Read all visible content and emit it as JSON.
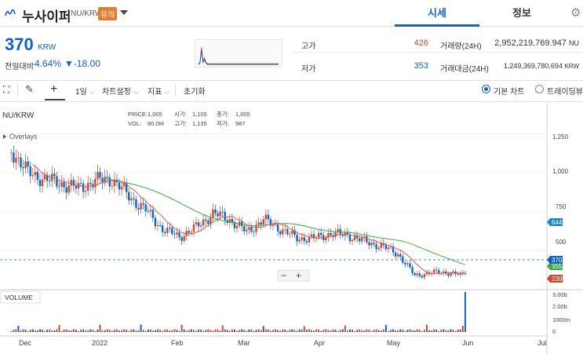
{
  "header": {
    "coin_name": "누사이퍼",
    "pair": "NU/KRW",
    "warning_badge": "유의",
    "tabs": [
      {
        "label": "시세",
        "active": true
      },
      {
        "label": "정보",
        "active": false
      }
    ]
  },
  "price": {
    "current": "370",
    "unit": "KRW",
    "change_label": "전일대비",
    "change_rate": "-4.64%",
    "change_amount": "▼-18.00"
  },
  "stats": {
    "high_label": "고가",
    "high_value": "426",
    "low_label": "저가",
    "low_value": "353",
    "volume_label": "거래량(24H)",
    "volume_value": "2,952,219,769.947",
    "volume_unit": "NU",
    "amount_label": "거래대금(24H)",
    "amount_value": "1,249,369,780,694",
    "amount_unit": "KRW"
  },
  "toolbar": {
    "interval": "1일",
    "chart_settings": "차트설정",
    "indicators": "지표",
    "reset": "초기화",
    "basic_chart": "기본 차트",
    "tradingview": "트레이딩뷰"
  },
  "chart": {
    "symbol": "NU/KRW",
    "overlays": "Overlays",
    "info": {
      "price_label": "PRICE:",
      "price_value": "1,005",
      "open_label": "시가:",
      "open_value": "1,105",
      "close_label": "종가:",
      "close_value": "1,005",
      "vol_label": "VOL:",
      "vol_value": "80.0M",
      "high_label": "고가:",
      "high_value": "1,135",
      "low_label": "저가:",
      "low_value": "987"
    },
    "volume_label": "VOLUME",
    "zoom_out": "−",
    "zoom_in": "+",
    "price_ticks": [
      "1,250",
      "1,000",
      "750",
      "500"
    ],
    "volume_ticks": [
      "3.00b",
      "2.00b",
      "1000m",
      "0"
    ],
    "x_ticks": [
      "Dec",
      "2022",
      "Feb",
      "Mar",
      "Apr",
      "May",
      "Jun",
      "Jul"
    ],
    "badges": [
      {
        "value": "644",
        "color": "#1e88c8"
      },
      {
        "value": "370",
        "color": "#1261c4"
      },
      {
        "value": "355",
        "color": "#3aa64a"
      },
      {
        "value": "239",
        "color": "#c84a31"
      }
    ]
  },
  "colors": {
    "up": "#c84a31",
    "down": "#1261c4",
    "accent": "#1261c4",
    "ma_short": "#e05a4a",
    "ma_long": "#3cae3c"
  },
  "chart_data": {
    "type": "line",
    "x": [
      "2021-11-24",
      "2021-12-01",
      "2021-12-08",
      "2021-12-15",
      "2021-12-22",
      "2021-12-29",
      "2022-01-05",
      "2022-01-12",
      "2022-01-19",
      "2022-01-26",
      "2022-02-02",
      "2022-02-09",
      "2022-02-16",
      "2022-02-23",
      "2022-03-02",
      "2022-03-09",
      "2022-03-16",
      "2022-03-23",
      "2022-03-30",
      "2022-04-06",
      "2022-04-13",
      "2022-04-20",
      "2022-04-27",
      "2022-05-04",
      "2022-05-11",
      "2022-05-18",
      "2022-05-25",
      "2022-05-31",
      "2022-06-01"
    ],
    "series": [
      {
        "values": [
          1150,
          1000,
          960,
          930,
          900,
          950,
          960,
          850,
          760,
          640,
          590,
          650,
          740,
          700,
          620,
          700,
          640,
          580,
          580,
          610,
          600,
          560,
          530,
          480,
          340,
          360,
          360,
          340,
          370
        ]
      }
    ],
    "ylim": [
      250,
      1450
    ]
  }
}
